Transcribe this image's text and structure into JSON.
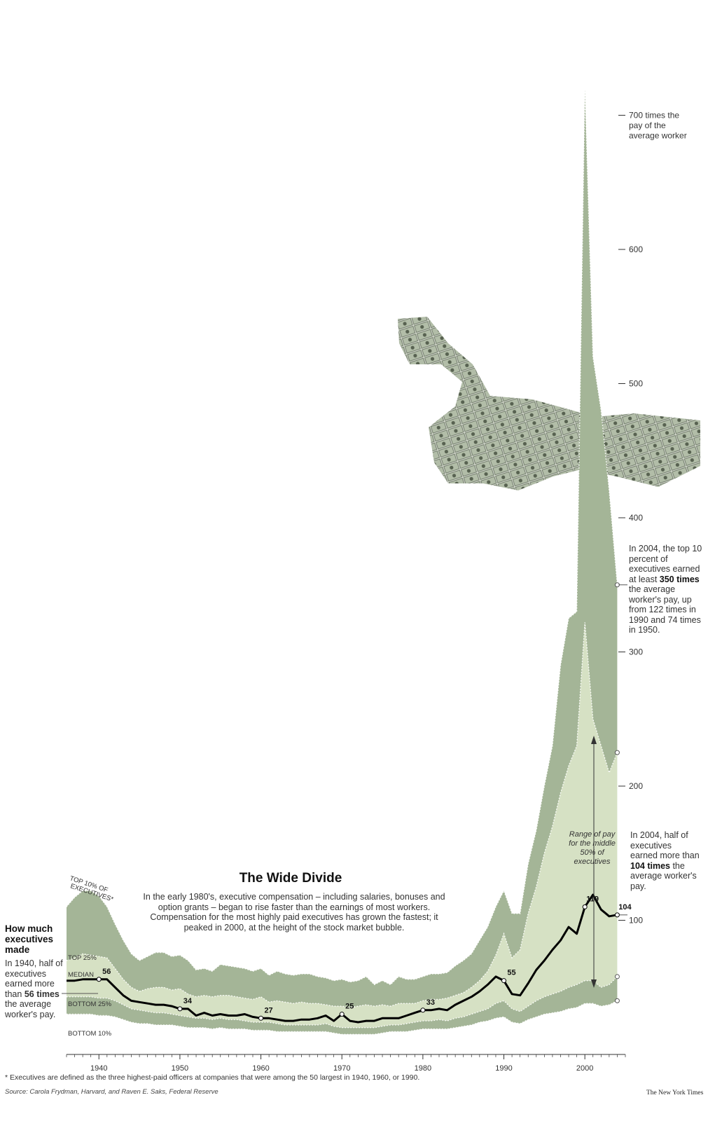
{
  "chart_data": {
    "type": "area",
    "title": "The Wide Divide",
    "subtitle": "In the early 1980's, executive compensation – including salaries, bonuses and option grants – began to rise faster than the earnings of most workers. Compensation for the most highly paid executives has grown the fastest; it peaked in 2000, at the height of the stock market bubble.",
    "xlim": [
      1936,
      2005
    ],
    "ylim": [
      0,
      780
    ],
    "x_ticks": [
      "1940",
      "1950",
      "1960",
      "1970",
      "1980",
      "1990",
      "2000"
    ],
    "y_ticks": [
      "100",
      "200",
      "300",
      "400",
      "500",
      "600",
      "700 times the pay of the average worker"
    ],
    "x": [
      1936,
      1937,
      1938,
      1939,
      1940,
      1941,
      1942,
      1943,
      1944,
      1945,
      1946,
      1947,
      1948,
      1949,
      1950,
      1951,
      1952,
      1953,
      1954,
      1955,
      1956,
      1957,
      1958,
      1959,
      1960,
      1961,
      1962,
      1963,
      1964,
      1965,
      1966,
      1967,
      1968,
      1969,
      1970,
      1971,
      1972,
      1973,
      1974,
      1975,
      1976,
      1977,
      1978,
      1979,
      1980,
      1981,
      1982,
      1983,
      1984,
      1985,
      1986,
      1987,
      1988,
      1989,
      1990,
      1991,
      1992,
      1993,
      1994,
      1995,
      1996,
      1997,
      1998,
      1999,
      2000,
      2001,
      2002,
      2003,
      2004
    ],
    "series": [
      {
        "name": "TOP 10% OF EXECUTIVES*",
        "values": [
          110,
          117,
          122,
          122,
          118,
          110,
          97,
          85,
          75,
          70,
          73,
          76,
          76,
          73,
          74,
          70,
          63,
          64,
          62,
          67,
          66,
          65,
          64,
          62,
          64,
          59,
          62,
          60,
          59,
          60,
          60,
          58,
          57,
          55,
          56,
          54,
          55,
          58,
          52,
          55,
          52,
          58,
          56,
          56,
          58,
          60,
          60,
          61,
          66,
          70,
          75,
          85,
          95,
          110,
          122,
          105,
          105,
          142,
          167,
          200,
          230,
          290,
          325,
          330,
          720,
          520,
          480,
          420,
          350
        ]
      },
      {
        "name": "TOP 25%",
        "values": [
          70,
          72,
          75,
          74,
          73,
          72,
          64,
          56,
          50,
          47,
          49,
          50,
          50,
          48,
          49,
          45,
          43,
          44,
          43,
          44,
          44,
          43,
          42,
          41,
          43,
          39,
          40,
          39,
          38,
          39,
          38,
          38,
          37,
          36,
          36,
          35,
          36,
          37,
          36,
          37,
          36,
          38,
          38,
          38,
          40,
          41,
          41,
          42,
          44,
          46,
          50,
          55,
          62,
          74,
          90,
          72,
          78,
          105,
          125,
          150,
          170,
          195,
          215,
          230,
          322,
          250,
          230,
          210,
          225
        ]
      },
      {
        "name": "MEDIAN",
        "values": [
          55,
          55,
          56,
          56,
          56,
          56,
          50,
          44,
          40,
          39,
          38,
          37,
          37,
          36,
          34,
          34,
          29,
          31,
          29,
          30,
          29,
          29,
          30,
          28,
          27,
          27,
          26,
          25,
          25,
          26,
          26,
          27,
          29,
          25,
          30,
          25,
          24,
          25,
          25,
          27,
          27,
          27,
          29,
          31,
          33,
          33,
          34,
          33,
          37,
          40,
          43,
          47,
          52,
          58,
          55,
          45,
          44,
          53,
          63,
          70,
          78,
          85,
          95,
          90,
          110,
          119,
          108,
          103,
          104
        ]
      },
      {
        "name": "BOTTOM 25%",
        "values": [
          43,
          43,
          43,
          43,
          42,
          42,
          40,
          37,
          34,
          33,
          32,
          31,
          31,
          30,
          29,
          28,
          27,
          27,
          26,
          27,
          26,
          26,
          25,
          24,
          24,
          24,
          23,
          22,
          22,
          22,
          22,
          22,
          23,
          21,
          20,
          20,
          20,
          20,
          20,
          21,
          22,
          22,
          23,
          24,
          25,
          25,
          26,
          25,
          27,
          28,
          30,
          32,
          34,
          38,
          40,
          34,
          32,
          36,
          40,
          43,
          45,
          47,
          50,
          52,
          55,
          55,
          50,
          52,
          58
        ]
      },
      {
        "name": "BOTTOM 10%",
        "values": [
          30,
          30,
          30,
          30,
          29,
          29,
          28,
          26,
          24,
          23,
          23,
          22,
          22,
          22,
          21,
          20,
          20,
          20,
          19,
          20,
          19,
          19,
          19,
          18,
          18,
          18,
          17,
          17,
          17,
          17,
          17,
          17,
          17,
          16,
          15,
          15,
          15,
          15,
          15,
          16,
          17,
          17,
          17,
          18,
          19,
          19,
          19,
          19,
          20,
          21,
          22,
          24,
          25,
          27,
          28,
          24,
          23,
          26,
          28,
          30,
          31,
          32,
          34,
          35,
          38,
          38,
          36,
          37,
          40
        ]
      }
    ],
    "value_labels": [
      "56",
      "34",
      "27",
      "25",
      "33",
      "55",
      "119",
      "104"
    ],
    "range_note": "Range of pay for the middle 50% of executives",
    "colors": {
      "outer": "#a4b597",
      "inner": "#d6e1c4",
      "median": "#000000"
    }
  },
  "annotations": {
    "how_much_title": "How much executives made",
    "how_much_text_pre": "In 1940, half of executives earned more than ",
    "how_much_text_bold": "56 times",
    "how_much_text_post": " the average worker's pay.",
    "top10_pre": "In 2004, the top 10 percent of executives earned at least ",
    "top10_bold": "350 times",
    "top10_post": " the average worker's pay, up from 122 times in 1990 and 74 times in 1950.",
    "half_pre": "In 2004, half of executives earned more than ",
    "half_bold": "104 times",
    "half_post": " the average worker's pay."
  },
  "footnote": "* Executives are defined as the three highest-paid officers at companies that were among the 50 largest in 1940, 1960, or 1990.",
  "source": "Source: Carola Frydman, Harvard, and Raven E. Saks, Federal Reserve",
  "credit": "The New York Times"
}
